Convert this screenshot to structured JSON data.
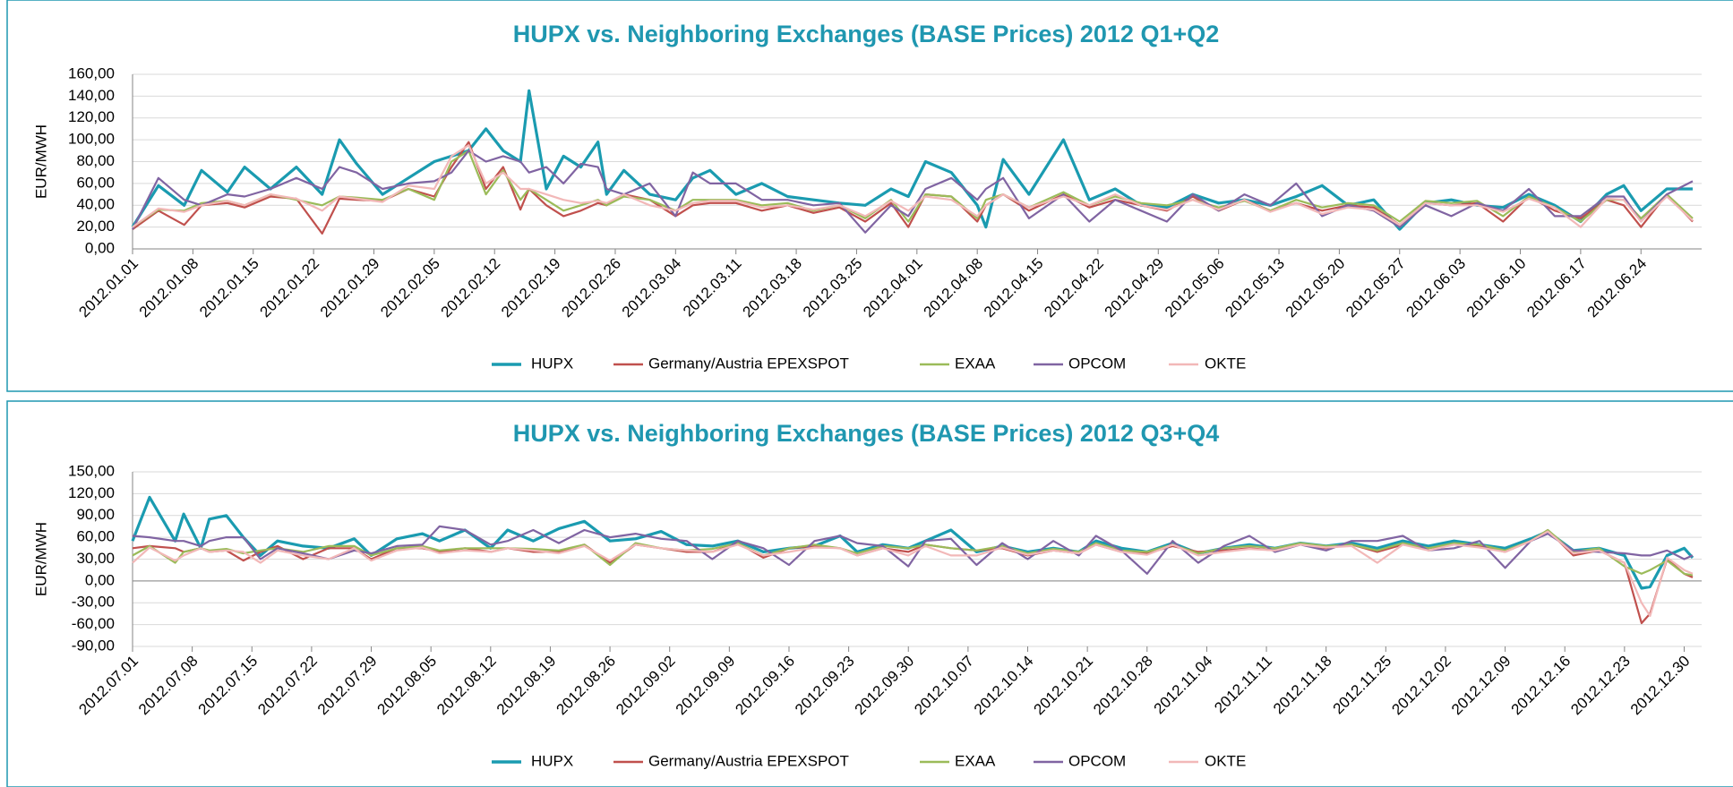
{
  "chart_data": [
    {
      "type": "line",
      "title": "HUPX vs. Neighboring Exchanges (BASE Prices) 2012 Q1+Q2",
      "ylabel": "EUR/MWH",
      "x": [
        "2012.01.01",
        "2012.01.04",
        "2012.01.07",
        "2012.01.09",
        "2012.01.12",
        "2012.01.14",
        "2012.01.17",
        "2012.01.20",
        "2012.01.23",
        "2012.01.25",
        "2012.01.27",
        "2012.01.30",
        "2012.02.02",
        "2012.02.05",
        "2012.02.07",
        "2012.02.09",
        "2012.02.11",
        "2012.02.13",
        "2012.02.15",
        "2012.02.16",
        "2012.02.18",
        "2012.02.20",
        "2012.02.22",
        "2012.02.24",
        "2012.02.25",
        "2012.02.27",
        "2012.03.01",
        "2012.03.04",
        "2012.03.06",
        "2012.03.08",
        "2012.03.11",
        "2012.03.14",
        "2012.03.17",
        "2012.03.20",
        "2012.03.23",
        "2012.03.26",
        "2012.03.29",
        "2012.03.31",
        "2012.04.02",
        "2012.04.05",
        "2012.04.08",
        "2012.04.09",
        "2012.04.11",
        "2012.04.14",
        "2012.04.18",
        "2012.04.21",
        "2012.04.24",
        "2012.04.27",
        "2012.04.30",
        "2012.05.03",
        "2012.05.06",
        "2012.05.09",
        "2012.05.12",
        "2012.05.15",
        "2012.05.18",
        "2012.05.21",
        "2012.05.24",
        "2012.05.27",
        "2012.05.30",
        "2012.06.02",
        "2012.06.05",
        "2012.06.08",
        "2012.06.11",
        "2012.06.14",
        "2012.06.17",
        "2012.06.20",
        "2012.06.22",
        "2012.06.24",
        "2012.06.27",
        "2012.06.30"
      ],
      "series": [
        {
          "name": "HUPX",
          "color": "#1a9bb0",
          "values": [
            20,
            58,
            40,
            72,
            52,
            75,
            55,
            75,
            50,
            100,
            78,
            50,
            65,
            80,
            85,
            90,
            110,
            90,
            80,
            145,
            55,
            85,
            75,
            98,
            50,
            72,
            50,
            45,
            65,
            72,
            50,
            60,
            48,
            45,
            42,
            40,
            55,
            48,
            80,
            70,
            40,
            20,
            82,
            50,
            100,
            45,
            55,
            40,
            38,
            50,
            42,
            45,
            40,
            48,
            58,
            40,
            45,
            18,
            42,
            45,
            40,
            38,
            50,
            40,
            25,
            50,
            58,
            35,
            55,
            55
          ]
        },
        {
          "name": "Germany/Austria EPEXSPOT",
          "color": "#c0504d",
          "values": [
            18,
            35,
            22,
            40,
            42,
            38,
            48,
            46,
            14,
            46,
            45,
            44,
            55,
            48,
            75,
            98,
            55,
            75,
            36,
            55,
            40,
            30,
            35,
            42,
            40,
            50,
            45,
            30,
            40,
            42,
            42,
            35,
            40,
            33,
            38,
            25,
            42,
            20,
            50,
            48,
            25,
            40,
            50,
            35,
            50,
            38,
            45,
            40,
            35,
            48,
            35,
            45,
            35,
            42,
            35,
            40,
            38,
            22,
            42,
            40,
            42,
            25,
            48,
            35,
            28,
            45,
            40,
            20,
            50,
            25
          ]
        },
        {
          "name": "EXAA",
          "color": "#9bbb59",
          "values": [
            20,
            36,
            35,
            42,
            44,
            40,
            50,
            45,
            40,
            48,
            47,
            45,
            55,
            45,
            80,
            90,
            50,
            72,
            45,
            55,
            45,
            35,
            40,
            45,
            40,
            48,
            45,
            35,
            45,
            45,
            45,
            40,
            42,
            35,
            40,
            28,
            45,
            25,
            50,
            48,
            28,
            45,
            50,
            38,
            52,
            40,
            48,
            42,
            40,
            45,
            38,
            44,
            35,
            45,
            38,
            42,
            40,
            25,
            44,
            42,
            44,
            30,
            48,
            38,
            25,
            45,
            45,
            28,
            50,
            28
          ]
        },
        {
          "name": "OPCOM",
          "color": "#8064a2",
          "values": [
            18,
            65,
            45,
            40,
            50,
            48,
            55,
            65,
            55,
            75,
            70,
            55,
            60,
            62,
            70,
            90,
            80,
            85,
            80,
            70,
            75,
            60,
            78,
            75,
            55,
            50,
            60,
            30,
            70,
            60,
            60,
            45,
            45,
            40,
            42,
            15,
            40,
            30,
            55,
            65,
            45,
            55,
            65,
            28,
            50,
            25,
            45,
            35,
            25,
            50,
            35,
            50,
            40,
            60,
            30,
            40,
            35,
            20,
            40,
            30,
            42,
            35,
            55,
            30,
            30,
            48,
            48,
            25,
            50,
            62
          ]
        },
        {
          "name": "OKTE",
          "color": "#f2b8b8",
          "values": [
            20,
            37,
            34,
            40,
            44,
            40,
            50,
            46,
            35,
            48,
            46,
            43,
            58,
            55,
            85,
            95,
            60,
            70,
            55,
            55,
            50,
            45,
            42,
            44,
            42,
            50,
            40,
            35,
            42,
            44,
            44,
            38,
            40,
            36,
            40,
            30,
            44,
            35,
            48,
            45,
            30,
            40,
            50,
            38,
            48,
            40,
            50,
            40,
            36,
            45,
            36,
            45,
            34,
            42,
            32,
            38,
            36,
            22,
            42,
            40,
            40,
            34,
            46,
            38,
            20,
            46,
            45,
            25,
            48,
            26
          ]
        }
      ],
      "xlim": [
        "2012.01.01",
        "2012.06.30"
      ],
      "xticks": [
        "2012.01.01",
        "2012.01.08",
        "2012.01.15",
        "2012.01.22",
        "2012.01.29",
        "2012.02.05",
        "2012.02.12",
        "2012.02.19",
        "2012.02.26",
        "2012.03.04",
        "2012.03.11",
        "2012.03.18",
        "2012.03.25",
        "2012.04.01",
        "2012.04.08",
        "2012.04.15",
        "2012.04.22",
        "2012.04.29",
        "2012.05.06",
        "2012.05.13",
        "2012.05.20",
        "2012.05.27",
        "2012.06.03",
        "2012.06.10",
        "2012.06.17",
        "2012.06.24"
      ],
      "ylim": [
        0,
        160
      ],
      "yticks": [
        {
          "value": 0,
          "label": "0,00"
        },
        {
          "value": 20,
          "label": "20,00"
        },
        {
          "value": 40,
          "label": "40,00"
        },
        {
          "value": 60,
          "label": "60,00"
        },
        {
          "value": 80,
          "label": "80,00"
        },
        {
          "value": 100,
          "label": "100,00"
        },
        {
          "value": 120,
          "label": "120,00"
        },
        {
          "value": 140,
          "label": "140,00"
        },
        {
          "value": 160,
          "label": "160,00"
        }
      ],
      "grid": true,
      "legend": "bottom"
    },
    {
      "type": "line",
      "title": "HUPX vs. Neighboring Exchanges (BASE Prices) 2012 Q3+Q4",
      "ylabel": "EUR/MWH",
      "x": [
        "2012.07.01",
        "2012.07.03",
        "2012.07.06",
        "2012.07.07",
        "2012.07.09",
        "2012.07.10",
        "2012.07.12",
        "2012.07.14",
        "2012.07.16",
        "2012.07.18",
        "2012.07.21",
        "2012.07.24",
        "2012.07.27",
        "2012.07.29",
        "2012.08.01",
        "2012.08.04",
        "2012.08.06",
        "2012.08.09",
        "2012.08.12",
        "2012.08.14",
        "2012.08.17",
        "2012.08.20",
        "2012.08.23",
        "2012.08.26",
        "2012.08.29",
        "2012.09.01",
        "2012.09.04",
        "2012.09.07",
        "2012.09.10",
        "2012.09.13",
        "2012.09.16",
        "2012.09.19",
        "2012.09.22",
        "2012.09.24",
        "2012.09.27",
        "2012.09.30",
        "2012.10.02",
        "2012.10.05",
        "2012.10.08",
        "2012.10.11",
        "2012.10.14",
        "2012.10.17",
        "2012.10.20",
        "2012.10.22",
        "2012.10.25",
        "2012.10.28",
        "2012.10.31",
        "2012.11.03",
        "2012.11.06",
        "2012.11.09",
        "2012.11.12",
        "2012.11.15",
        "2012.11.18",
        "2012.11.21",
        "2012.11.24",
        "2012.11.27",
        "2012.11.30",
        "2012.12.03",
        "2012.12.06",
        "2012.12.09",
        "2012.12.12",
        "2012.12.14",
        "2012.12.17",
        "2012.12.20",
        "2012.12.23",
        "2012.12.25",
        "2012.12.26",
        "2012.12.28",
        "2012.12.30",
        "2012.12.31"
      ],
      "series": [
        {
          "name": "HUPX",
          "color": "#1a9bb0",
          "values": [
            55,
            115,
            55,
            92,
            45,
            85,
            90,
            60,
            35,
            55,
            48,
            45,
            58,
            35,
            58,
            65,
            55,
            70,
            45,
            70,
            55,
            72,
            82,
            55,
            58,
            68,
            50,
            48,
            55,
            40,
            45,
            48,
            62,
            40,
            50,
            45,
            55,
            70,
            40,
            48,
            40,
            45,
            40,
            55,
            45,
            40,
            52,
            38,
            45,
            50,
            45,
            52,
            48,
            52,
            45,
            55,
            48,
            55,
            50,
            45,
            58,
            68,
            42,
            45,
            35,
            -10,
            -8,
            35,
            45,
            32
          ]
        },
        {
          "name": "Germany/Austria EPEXSPOT",
          "color": "#c0504d",
          "values": [
            45,
            48,
            45,
            40,
            45,
            40,
            42,
            28,
            40,
            48,
            30,
            45,
            45,
            30,
            45,
            45,
            40,
            45,
            40,
            45,
            40,
            40,
            50,
            25,
            50,
            45,
            40,
            40,
            52,
            32,
            45,
            48,
            45,
            35,
            45,
            40,
            50,
            45,
            42,
            45,
            35,
            42,
            38,
            50,
            40,
            38,
            48,
            40,
            42,
            45,
            42,
            50,
            45,
            50,
            40,
            50,
            45,
            50,
            48,
            40,
            55,
            70,
            35,
            42,
            25,
            -58,
            -45,
            30,
            10,
            5
          ]
        },
        {
          "name": "EXAA",
          "color": "#9bbb59",
          "values": [
            35,
            48,
            25,
            40,
            45,
            42,
            44,
            38,
            42,
            45,
            40,
            48,
            48,
            35,
            45,
            48,
            42,
            45,
            45,
            45,
            44,
            42,
            50,
            22,
            52,
            45,
            42,
            44,
            52,
            35,
            45,
            50,
            45,
            38,
            48,
            45,
            50,
            45,
            42,
            48,
            38,
            44,
            40,
            52,
            42,
            40,
            50,
            38,
            45,
            48,
            45,
            52,
            48,
            50,
            42,
            52,
            45,
            52,
            50,
            42,
            55,
            70,
            40,
            45,
            20,
            10,
            15,
            28,
            10,
            8
          ]
        },
        {
          "name": "OPCOM",
          "color": "#8064a2",
          "values": [
            62,
            60,
            55,
            55,
            48,
            55,
            60,
            60,
            30,
            45,
            38,
            30,
            42,
            38,
            48,
            50,
            75,
            70,
            50,
            55,
            70,
            52,
            70,
            60,
            65,
            58,
            55,
            30,
            55,
            45,
            22,
            55,
            62,
            52,
            48,
            20,
            55,
            58,
            22,
            52,
            30,
            55,
            35,
            62,
            42,
            10,
            55,
            25,
            48,
            62,
            40,
            50,
            42,
            55,
            55,
            62,
            42,
            45,
            55,
            18,
            55,
            65,
            42,
            40,
            38,
            35,
            35,
            42,
            30,
            35
          ]
        },
        {
          "name": "OKTE",
          "color": "#f2b8b8",
          "values": [
            25,
            46,
            28,
            35,
            45,
            40,
            42,
            40,
            25,
            42,
            35,
            30,
            45,
            28,
            42,
            46,
            38,
            42,
            40,
            45,
            42,
            38,
            48,
            28,
            50,
            45,
            42,
            40,
            50,
            35,
            40,
            46,
            45,
            35,
            45,
            35,
            48,
            35,
            35,
            46,
            36,
            42,
            38,
            50,
            40,
            36,
            50,
            35,
            40,
            44,
            42,
            50,
            46,
            48,
            25,
            50,
            42,
            50,
            46,
            40,
            55,
            68,
            38,
            42,
            25,
            -30,
            -48,
            32,
            15,
            10
          ]
        }
      ],
      "xlim": [
        "2012.07.01",
        "2012.12.31"
      ],
      "xticks": [
        "2012.07.01",
        "2012.07.08",
        "2012.07.15",
        "2012.07.22",
        "2012.07.29",
        "2012.08.05",
        "2012.08.12",
        "2012.08.19",
        "2012.08.26",
        "2012.09.02",
        "2012.09.09",
        "2012.09.16",
        "2012.09.23",
        "2012.09.30",
        "2012.10.07",
        "2012.10.14",
        "2012.10.21",
        "2012.10.28",
        "2012.11.04",
        "2012.11.11",
        "2012.11.18",
        "2012.11.25",
        "2012.12.02",
        "2012.12.09",
        "2012.12.16",
        "2012.12.23",
        "2012.12.30"
      ],
      "ylim": [
        -90,
        150
      ],
      "yticks": [
        {
          "value": -90,
          "label": "-90,00"
        },
        {
          "value": -60,
          "label": "-60,00"
        },
        {
          "value": -30,
          "label": "-30,00"
        },
        {
          "value": 0,
          "label": "0,00"
        },
        {
          "value": 30,
          "label": "30,00"
        },
        {
          "value": 60,
          "label": "60,00"
        },
        {
          "value": 90,
          "label": "90,00"
        },
        {
          "value": 120,
          "label": "120,00"
        },
        {
          "value": 150,
          "label": "150,00"
        }
      ],
      "grid": true,
      "legend": "bottom"
    }
  ]
}
